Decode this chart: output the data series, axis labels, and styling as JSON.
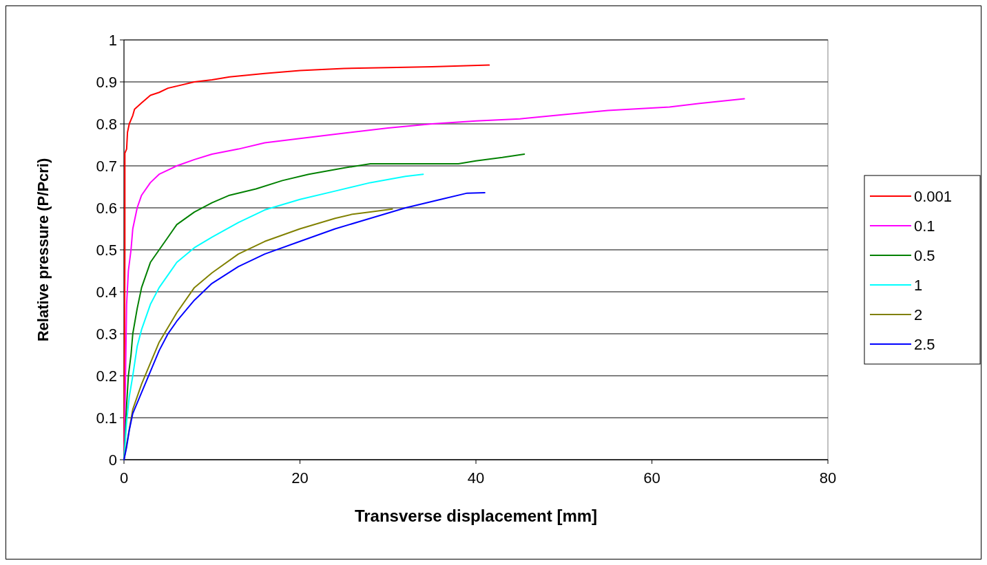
{
  "chart_data": {
    "type": "line",
    "xlabel": "Transverse displacement [mm]",
    "ylabel": "Relative pressure (P/Pcri)",
    "xlim": [
      0,
      80
    ],
    "xticks": [
      0,
      20,
      40,
      60,
      80
    ],
    "ylim": [
      0,
      1
    ],
    "yticks": [
      0,
      0.1,
      0.2,
      0.3,
      0.4,
      0.5,
      0.6,
      0.7,
      0.8,
      0.9,
      1
    ],
    "grid": "y",
    "legend": "right",
    "marker": "none",
    "line_style": "solid",
    "series": [
      {
        "name": "0.001",
        "color": "#ff0000",
        "x": [
          0,
          0.05,
          0.1,
          0.1,
          0.3,
          0.4,
          0.6,
          1,
          1.2,
          2,
          3,
          4,
          5,
          6,
          8,
          10,
          12,
          16,
          20,
          25,
          30,
          35,
          41.5
        ],
        "values": [
          0,
          0.2,
          0.5,
          0.73,
          0.74,
          0.78,
          0.8,
          0.82,
          0.835,
          0.85,
          0.868,
          0.875,
          0.885,
          0.89,
          0.9,
          0.905,
          0.912,
          0.92,
          0.927,
          0.932,
          0.934,
          0.936,
          0.94
        ]
      },
      {
        "name": "0.1",
        "color": "#ff00ff",
        "x": [
          0,
          0.1,
          0.3,
          0.5,
          0.8,
          1,
          1.5,
          2,
          3,
          4,
          5,
          6,
          8,
          10,
          13,
          16,
          20,
          25,
          30,
          35,
          40,
          45,
          50,
          55,
          62,
          66,
          70.5
        ],
        "values": [
          0,
          0.1,
          0.37,
          0.45,
          0.5,
          0.55,
          0.6,
          0.63,
          0.66,
          0.68,
          0.69,
          0.7,
          0.715,
          0.728,
          0.74,
          0.755,
          0.765,
          0.778,
          0.79,
          0.8,
          0.807,
          0.812,
          0.822,
          0.832,
          0.84,
          0.85,
          0.86
        ]
      },
      {
        "name": "0.5",
        "color": "#008000",
        "x": [
          0,
          0.3,
          0.5,
          0.8,
          1,
          1.5,
          2,
          3,
          4,
          5,
          6,
          8,
          10,
          12,
          15,
          18,
          21,
          25,
          28,
          38,
          40,
          43,
          45.5
        ],
        "values": [
          0,
          0.13,
          0.2,
          0.25,
          0.3,
          0.36,
          0.41,
          0.47,
          0.5,
          0.53,
          0.56,
          0.59,
          0.612,
          0.63,
          0.645,
          0.665,
          0.68,
          0.695,
          0.705,
          0.705,
          0.712,
          0.72,
          0.728
        ]
      },
      {
        "name": "1",
        "color": "#00ffff",
        "x": [
          0,
          0.3,
          0.6,
          1,
          1.5,
          2,
          3,
          4,
          5,
          6,
          8,
          10,
          13,
          16,
          20,
          24,
          28,
          32,
          34
        ],
        "values": [
          0,
          0.09,
          0.15,
          0.2,
          0.27,
          0.31,
          0.37,
          0.41,
          0.44,
          0.47,
          0.505,
          0.53,
          0.565,
          0.595,
          0.62,
          0.64,
          0.66,
          0.675,
          0.68
        ]
      },
      {
        "name": "2",
        "color": "#808000",
        "x": [
          0,
          1,
          2,
          3,
          4,
          6,
          8,
          10,
          13,
          16,
          20,
          24,
          26,
          28,
          30.5
        ],
        "values": [
          0,
          0.12,
          0.18,
          0.23,
          0.28,
          0.35,
          0.41,
          0.445,
          0.49,
          0.52,
          0.55,
          0.575,
          0.585,
          0.59,
          0.597
        ]
      },
      {
        "name": "2.5",
        "color": "#0000ff",
        "x": [
          0,
          0.3,
          0.6,
          1,
          2,
          3,
          4,
          5,
          6,
          8,
          10,
          13,
          16,
          20,
          24,
          28,
          32,
          36,
          39,
          41
        ],
        "values": [
          0,
          0.03,
          0.07,
          0.11,
          0.16,
          0.21,
          0.26,
          0.3,
          0.33,
          0.38,
          0.42,
          0.46,
          0.49,
          0.52,
          0.55,
          0.575,
          0.6,
          0.62,
          0.635,
          0.636
        ]
      }
    ]
  }
}
